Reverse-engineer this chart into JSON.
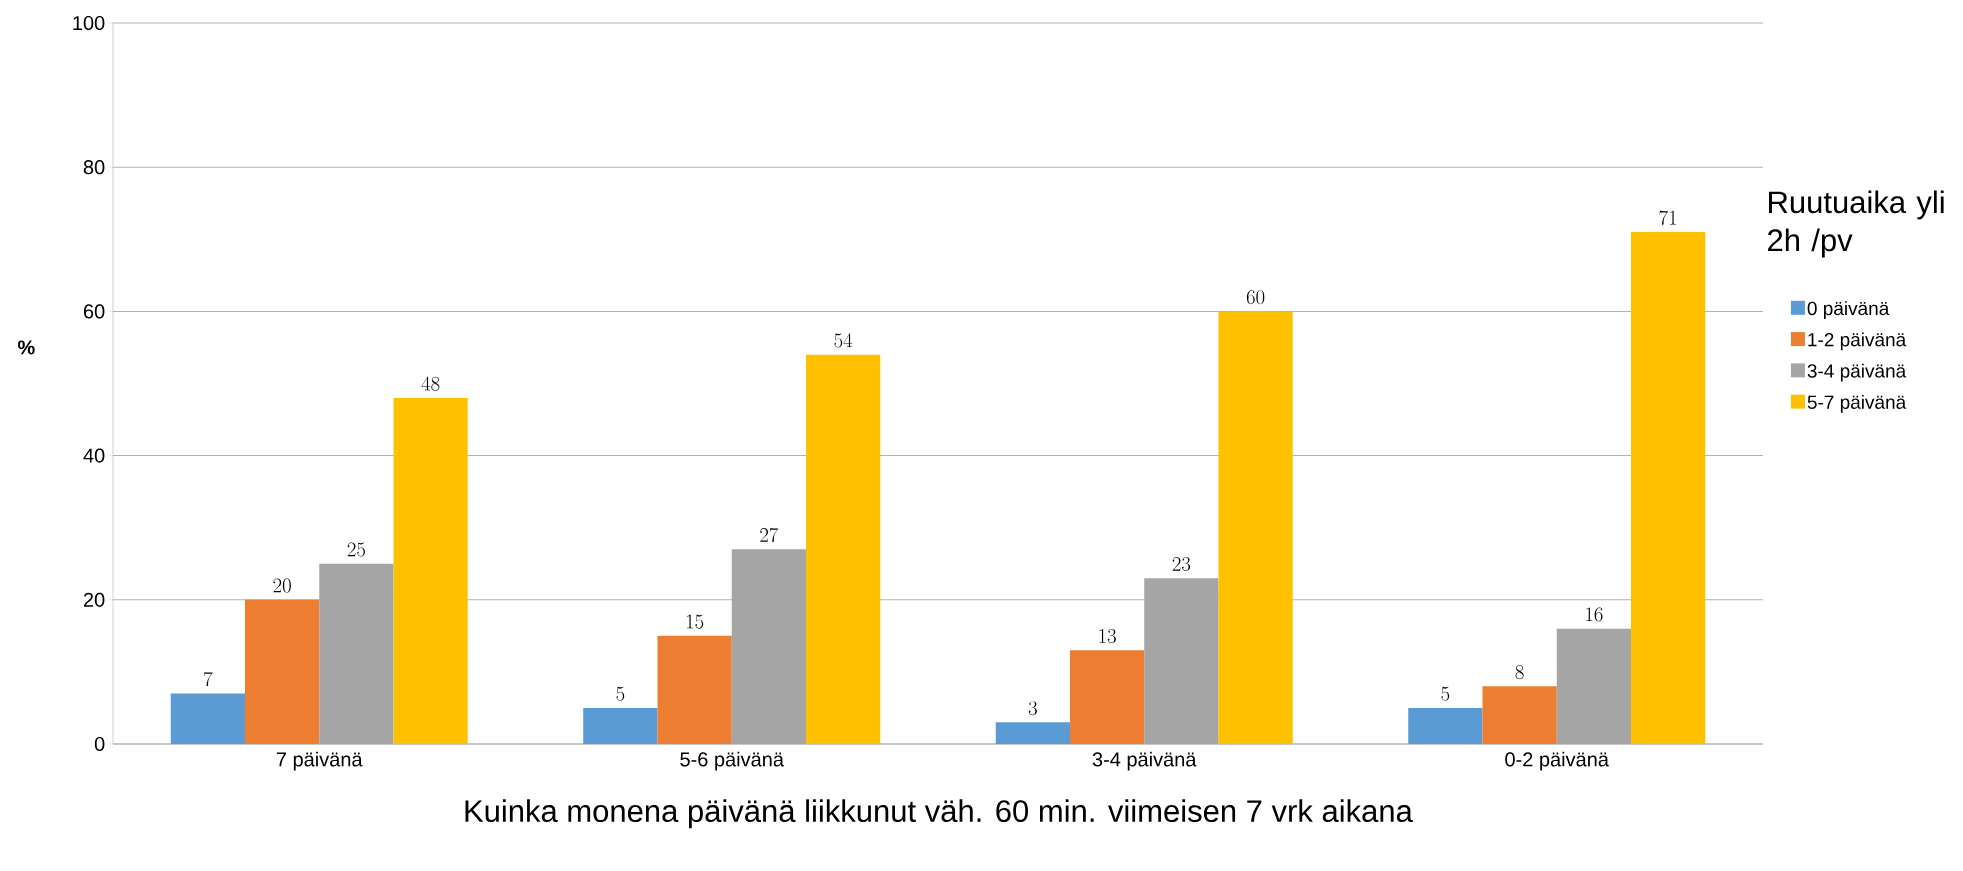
{
  "chart_data": {
    "type": "bar",
    "xlabel": "Kuinka monena päivänä liikkunut väh. 60 min. viimeisen 7 vrk aikana",
    "ylabel": "%",
    "legend_title": "Ruutuaika yli 2h /pv",
    "categories": [
      "7 päivänä",
      "5-6 päivänä",
      "3-4 päivänä",
      "0-2 päivänä"
    ],
    "series": [
      {
        "name": "0 päivänä",
        "color": "#5b9bd5",
        "values": [
          7,
          5,
          3,
          5
        ]
      },
      {
        "name": "1-2 päivänä",
        "color": "#ed7d31",
        "values": [
          20,
          15,
          13,
          8
        ]
      },
      {
        "name": "3-4 päivänä",
        "color": "#a5a5a5",
        "values": [
          25,
          27,
          23,
          16
        ]
      },
      {
        "name": "5-7 päivänä",
        "color": "#ffc000",
        "values": [
          48,
          54,
          60,
          71
        ]
      }
    ],
    "ylim": [
      0,
      100
    ],
    "yticks": [
      0,
      20,
      40,
      60,
      80,
      100
    ],
    "grid": "y",
    "legend": "right",
    "data_labels": true
  }
}
